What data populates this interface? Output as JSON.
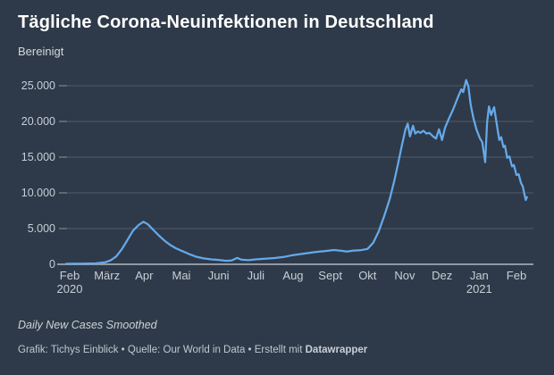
{
  "header": {
    "title": "Tägliche Corona-Neuinfektionen in Deutschland",
    "subtitle": "Bereinigt"
  },
  "footer": {
    "note": "Daily New Cases Smoothed",
    "credits_prefix": "Grafik: Tichys Einblick • Quelle: Our World in Data • Erstellt mit ",
    "credits_brand": "Datawrapper"
  },
  "colors": {
    "background": "#2e3a49",
    "title_text": "#ffffff",
    "axis_text": "#c8ced6",
    "line": "#66a9ea",
    "grid": "rgba(255,255,255,0.17)",
    "axis_line": "#9099a2",
    "tick": "rgba(255,255,255,0.35)"
  },
  "chart_data": {
    "type": "line",
    "title": "Tägliche Corona-Neuinfektionen in Deutschland",
    "subtitle": "Bereinigt",
    "series_name": "Daily New Cases Smoothed",
    "grid": true,
    "legend": "none",
    "ylim": [
      0,
      26000
    ],
    "xlim_months_from_feb_2020": [
      -0.2,
      12.5
    ],
    "x_unit": "months since Feb 2020",
    "y_ticks": [
      {
        "value": 0,
        "label": "0"
      },
      {
        "value": 5000,
        "label": "5.000"
      },
      {
        "value": 10000,
        "label": "10.000"
      },
      {
        "value": 15000,
        "label": "15.000"
      },
      {
        "value": 20000,
        "label": "20.000"
      },
      {
        "value": 25000,
        "label": "25.000"
      }
    ],
    "x_ticks": [
      {
        "idx": 0,
        "label": "Feb",
        "sublabel": "2020"
      },
      {
        "idx": 1,
        "label": "März"
      },
      {
        "idx": 2,
        "label": "Apr"
      },
      {
        "idx": 3,
        "label": "Mai"
      },
      {
        "idx": 4,
        "label": "Juni"
      },
      {
        "idx": 5,
        "label": "Juli"
      },
      {
        "idx": 6,
        "label": "Aug"
      },
      {
        "idx": 7,
        "label": "Sept"
      },
      {
        "idx": 8,
        "label": "Okt"
      },
      {
        "idx": 9,
        "label": "Nov"
      },
      {
        "idx": 10,
        "label": "Dez"
      },
      {
        "idx": 11,
        "label": "Jan",
        "sublabel": "2021"
      },
      {
        "idx": 12,
        "label": "Feb"
      }
    ],
    "points": [
      [
        -0.1,
        60
      ],
      [
        0.0,
        70
      ],
      [
        0.35,
        90
      ],
      [
        0.7,
        130
      ],
      [
        0.95,
        280
      ],
      [
        1.1,
        550
      ],
      [
        1.25,
        1100
      ],
      [
        1.4,
        2100
      ],
      [
        1.55,
        3400
      ],
      [
        1.7,
        4700
      ],
      [
        1.85,
        5500
      ],
      [
        1.98,
        5950
      ],
      [
        2.1,
        5600
      ],
      [
        2.25,
        4800
      ],
      [
        2.4,
        4000
      ],
      [
        2.55,
        3300
      ],
      [
        2.7,
        2700
      ],
      [
        2.85,
        2250
      ],
      [
        3.0,
        1900
      ],
      [
        3.2,
        1450
      ],
      [
        3.4,
        1050
      ],
      [
        3.6,
        820
      ],
      [
        3.8,
        690
      ],
      [
        4.0,
        610
      ],
      [
        4.2,
        490
      ],
      [
        4.35,
        540
      ],
      [
        4.5,
        890
      ],
      [
        4.62,
        640
      ],
      [
        4.8,
        570
      ],
      [
        5.0,
        690
      ],
      [
        5.25,
        770
      ],
      [
        5.5,
        870
      ],
      [
        5.75,
        1020
      ],
      [
        6.0,
        1290
      ],
      [
        6.3,
        1500
      ],
      [
        6.6,
        1710
      ],
      [
        6.85,
        1840
      ],
      [
        7.1,
        2000
      ],
      [
        7.3,
        1890
      ],
      [
        7.45,
        1790
      ],
      [
        7.6,
        1900
      ],
      [
        7.8,
        1960
      ],
      [
        8.0,
        2150
      ],
      [
        8.15,
        3000
      ],
      [
        8.3,
        4600
      ],
      [
        8.45,
        6800
      ],
      [
        8.6,
        9200
      ],
      [
        8.72,
        11700
      ],
      [
        8.82,
        14100
      ],
      [
        8.92,
        16600
      ],
      [
        9.02,
        18900
      ],
      [
        9.08,
        19700
      ],
      [
        9.14,
        17900
      ],
      [
        9.22,
        19400
      ],
      [
        9.28,
        18300
      ],
      [
        9.35,
        18600
      ],
      [
        9.42,
        18400
      ],
      [
        9.5,
        18700
      ],
      [
        9.58,
        18300
      ],
      [
        9.66,
        18400
      ],
      [
        9.76,
        17900
      ],
      [
        9.84,
        17600
      ],
      [
        9.92,
        18900
      ],
      [
        10.0,
        17400
      ],
      [
        10.08,
        19100
      ],
      [
        10.17,
        20200
      ],
      [
        10.3,
        21700
      ],
      [
        10.42,
        23300
      ],
      [
        10.52,
        24500
      ],
      [
        10.57,
        24100
      ],
      [
        10.65,
        25800
      ],
      [
        10.71,
        24900
      ],
      [
        10.77,
        22400
      ],
      [
        10.84,
        20500
      ],
      [
        10.93,
        18800
      ],
      [
        11.02,
        17600
      ],
      [
        11.08,
        17100
      ],
      [
        11.16,
        14300
      ],
      [
        11.21,
        19800
      ],
      [
        11.26,
        22100
      ],
      [
        11.32,
        20900
      ],
      [
        11.4,
        22000
      ],
      [
        11.5,
        18600
      ],
      [
        11.54,
        17400
      ],
      [
        11.59,
        17800
      ],
      [
        11.65,
        16400
      ],
      [
        11.69,
        16600
      ],
      [
        11.75,
        14900
      ],
      [
        11.81,
        15100
      ],
      [
        11.88,
        13700
      ],
      [
        11.93,
        13900
      ],
      [
        12.0,
        12500
      ],
      [
        12.06,
        12600
      ],
      [
        12.12,
        11400
      ],
      [
        12.17,
        10900
      ],
      [
        12.21,
        9900
      ],
      [
        12.25,
        9000
      ],
      [
        12.28,
        9400
      ]
    ]
  }
}
